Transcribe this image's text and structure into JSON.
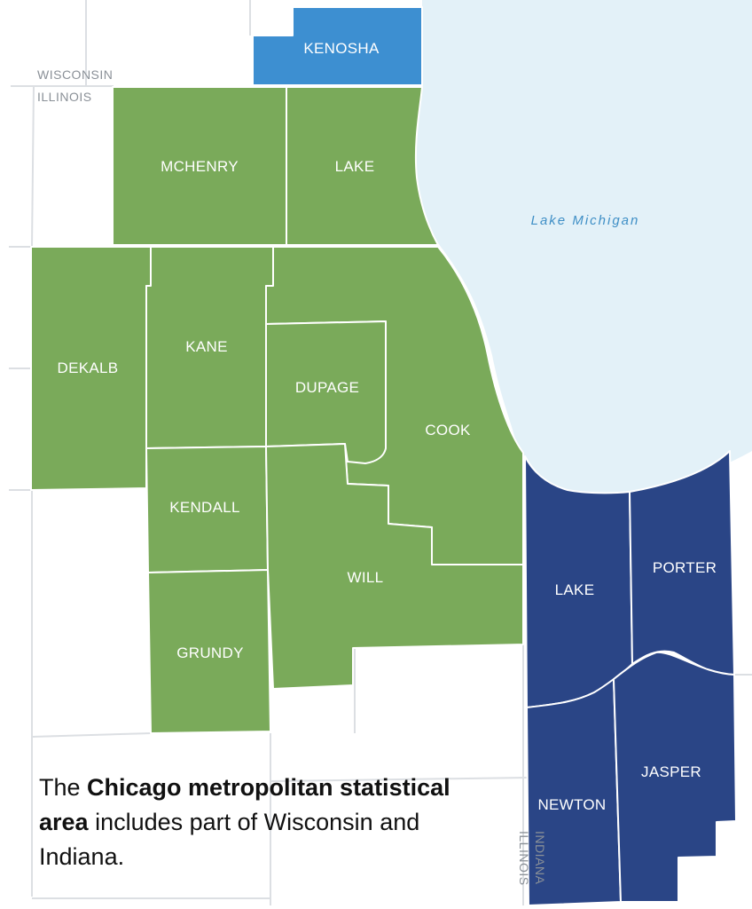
{
  "colors": {
    "illinois_county": "#7aaa5a",
    "wisconsin_county": "#3d8fd1",
    "indiana_county": "#2a4586",
    "lake": "#e3f1f8",
    "border_lines": "#dcdfe3"
  },
  "state_labels": {
    "wisconsin": "WISCONSIN",
    "illinois_top": "ILLINOIS",
    "illinois_vertical": "ILLINOIS",
    "indiana_vertical": "INDIANA"
  },
  "lake_label": "Lake Michigan",
  "counties": {
    "kenosha": "KENOSHA",
    "mchenry": "MCHENRY",
    "lake_il": "LAKE",
    "dekalb": "DEKALB",
    "kane": "KANE",
    "dupage": "DUPAGE",
    "cook": "COOK",
    "kendall": "KENDALL",
    "will": "WILL",
    "grundy": "GRUNDY",
    "lake_in": "LAKE",
    "porter": "PORTER",
    "newton": "NEWTON",
    "jasper": "JASPER"
  },
  "caption": {
    "pre": "The ",
    "bold": "Chicago metropolitan statistical area",
    "post": " includes part of Wisconsin and Indiana."
  }
}
